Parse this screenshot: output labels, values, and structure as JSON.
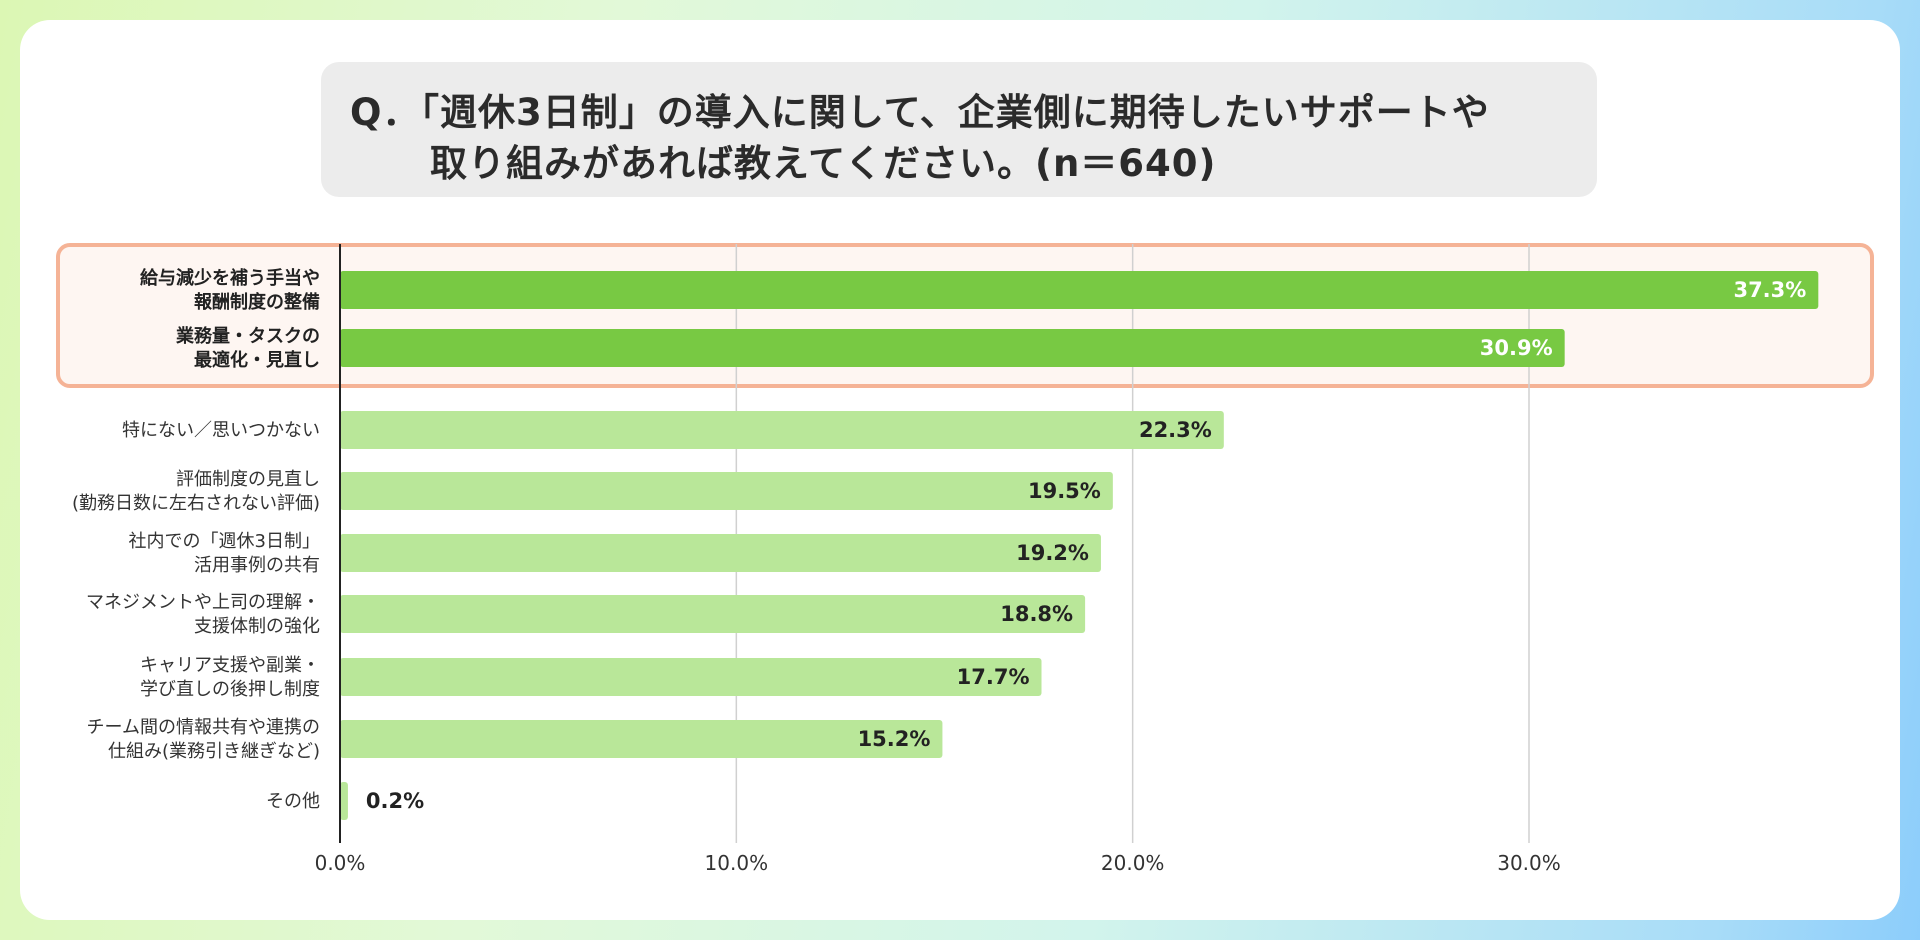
{
  "title": {
    "line1": "Q．「週休3日制」の導入に関して、企業側に期待したいサポートや",
    "line2": "取り組みがあれば教えてください。(n＝640)"
  },
  "colors": {
    "highlight_bar": "#78c943",
    "normal_bar": "#b9e799",
    "highlight_border": "#f5b396"
  },
  "chart_data": {
    "type": "bar",
    "orientation": "horizontal",
    "title": "Q．「週休3日制」の導入に関して、企業側に期待したいサポートや取り組みがあれば教えてください。(n＝640)",
    "categories": [
      [
        "給与減少を補う手当や",
        "報酬制度の整備"
      ],
      [
        "業務量・タスクの",
        "最適化・見直し"
      ],
      [
        "特にない／思いつかない"
      ],
      [
        "評価制度の見直し",
        "(勤務日数に左右されない評価)"
      ],
      [
        "社内での「週休3日制」",
        "活用事例の共有"
      ],
      [
        "マネジメントや上司の理解・",
        "支援体制の強化"
      ],
      [
        "キャリア支援や副業・",
        "学び直しの後押し制度"
      ],
      [
        "チーム間の情報共有や連携の",
        "仕組み(業務引き継ぎなど)"
      ],
      [
        "その他"
      ]
    ],
    "values": [
      37.3,
      30.9,
      22.3,
      19.5,
      19.2,
      18.8,
      17.7,
      15.2,
      0.2
    ],
    "value_labels": [
      "37.3%",
      "30.9%",
      "22.3%",
      "19.5%",
      "19.2%",
      "18.8%",
      "17.7%",
      "15.2%",
      "0.2%"
    ],
    "highlighted": [
      true,
      true,
      false,
      false,
      false,
      false,
      false,
      false,
      false
    ],
    "xticks": [
      0,
      10,
      20,
      30
    ],
    "xtick_labels": [
      "0.0%",
      "10.0%",
      "20.0%",
      "30.0%"
    ],
    "xlim": [
      0,
      39.9
    ],
    "grid": true
  }
}
